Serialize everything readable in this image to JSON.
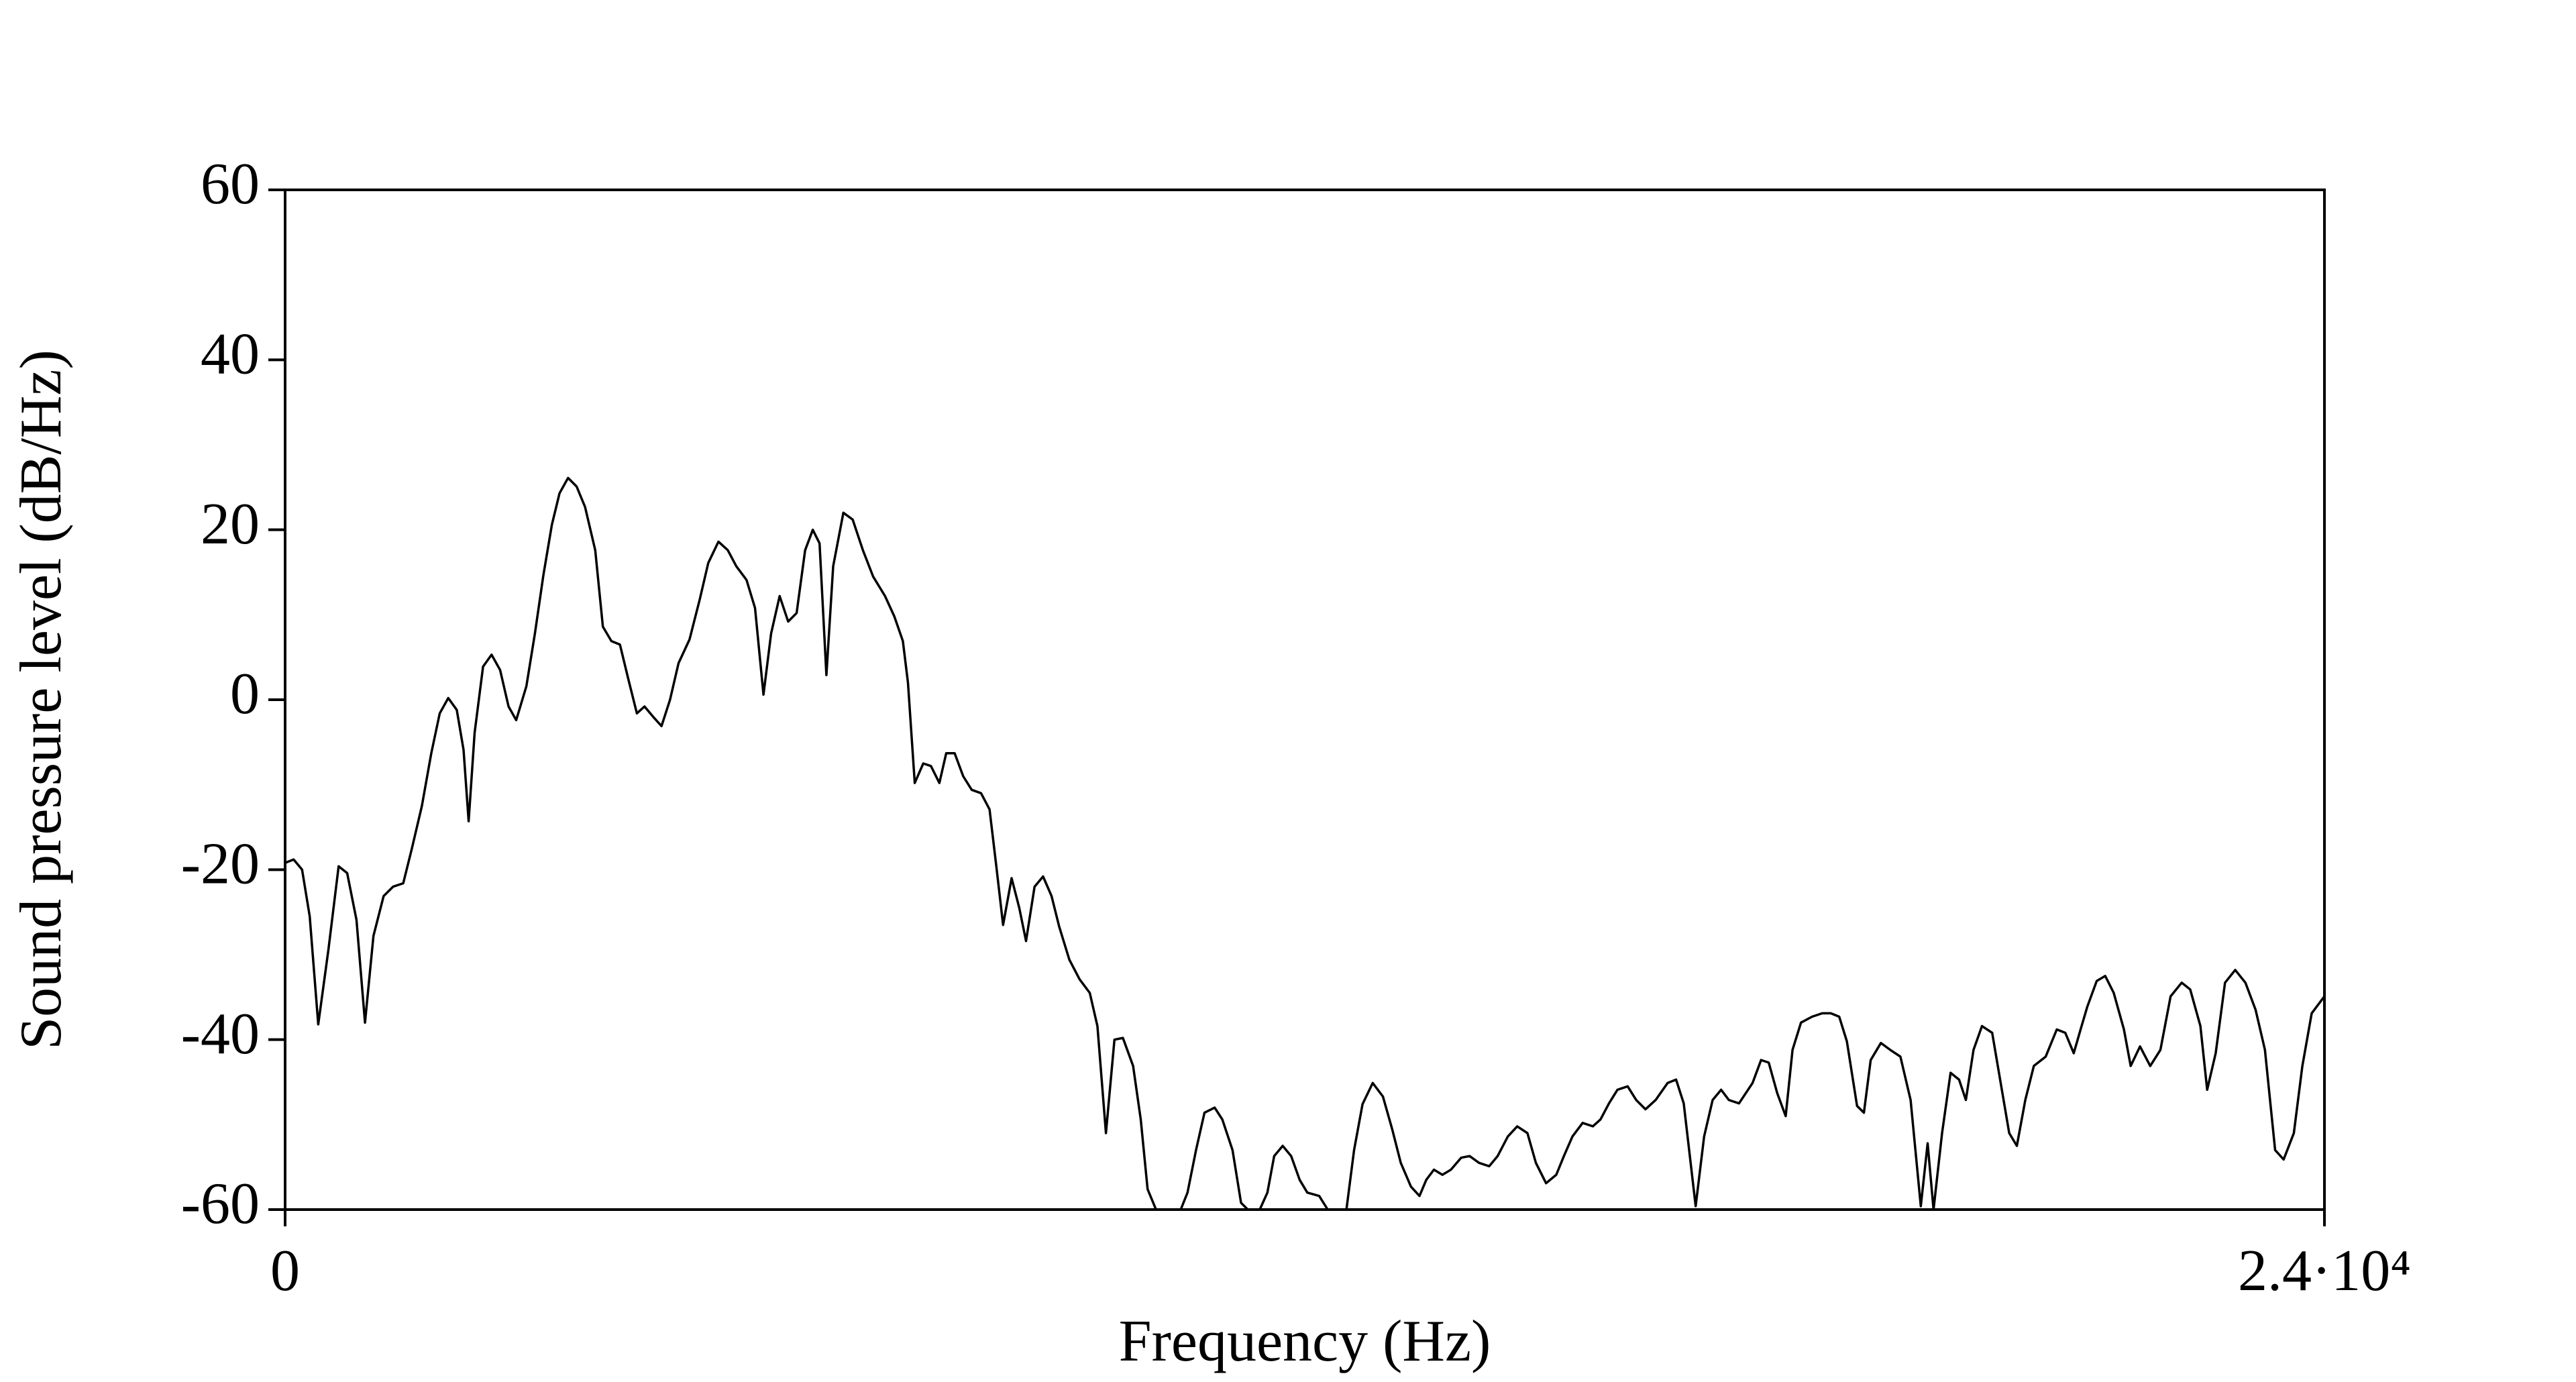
{
  "chart_data": {
    "type": "line",
    "x_label": "Frequency (Hz)",
    "y_label": "Sound pressure level (dB/Hz)",
    "xlim": [
      0,
      24000
    ],
    "ylim": [
      -60,
      60
    ],
    "xticks": [
      0,
      {
        "value": 24000,
        "label": "2.4·10⁴"
      }
    ],
    "yticks": [
      -60,
      -40,
      -20,
      0,
      20,
      40,
      60
    ],
    "color": "#000000",
    "x": [
      0,
      100,
      200,
      290,
      390,
      510,
      630,
      730,
      840,
      940,
      1040,
      1160,
      1270,
      1390,
      1490,
      1610,
      1720,
      1820,
      1920,
      2020,
      2100,
      2160,
      2230,
      2330,
      2430,
      2530,
      2630,
      2720,
      2840,
      2940,
      3040,
      3140,
      3230,
      3330,
      3430,
      3530,
      3650,
      3740,
      3840,
      3940,
      4040,
      4140,
      4230,
      4330,
      4430,
      4530,
      4630,
      4760,
      4880,
      4980,
      5100,
      5210,
      5310,
      5430,
      5530,
      5630,
      5720,
      5820,
      5920,
      6020,
      6120,
      6210,
      6290,
      6370,
      6450,
      6570,
      6680,
      6800,
      6920,
      7060,
      7170,
      7270,
      7330,
      7410,
      7510,
      7600,
      7700,
      7780,
      7880,
      7980,
      8080,
      8190,
      8290,
      8370,
      8450,
      8550,
      8640,
      8720,
      8820,
      8920,
      9020,
      9110,
      9230,
      9350,
      9470,
      9560,
      9660,
      9760,
      9860,
      9980,
      10070,
      10150,
      10250,
      10540,
      10620,
      10720,
      10820,
      10940,
      11030,
      11150,
      11250,
      11330,
      11470,
      11560,
      11640,
      11740,
      11840,
      11940,
      12030,
      12170,
      12270,
      12490,
      12580,
      12680,
      12800,
      12920,
      13030,
      13130,
      13250,
      13350,
      13430,
      13520,
      13620,
      13720,
      13840,
      13940,
      14050,
      14170,
      14270,
      14390,
      14500,
      14620,
      14720,
      14840,
      14960,
      15050,
      15150,
      15270,
      15390,
      15480,
      15580,
      15680,
      15800,
      15900,
      16010,
      16130,
      16270,
      16370,
      16460,
      16600,
      16700,
      16800,
      16900,
      16990,
      17110,
      17270,
      17370,
      17460,
      17560,
      17660,
      17740,
      17840,
      17970,
      18090,
      18190,
      18290,
      18380,
      18500,
      18580,
      18660,
      18780,
      18890,
      19010,
      19130,
      19250,
      19330,
      19400,
      19500,
      19600,
      19700,
      19780,
      19870,
      19970,
      20090,
      20190,
      20290,
      20380,
      20480,
      20580,
      20720,
      20850,
      20950,
      21050,
      21130,
      21210,
      21320,
      21420,
      21520,
      21640,
      21720,
      21830,
      21950,
      22070,
      22190,
      22320,
      22420,
      22540,
      22620,
      22720,
      22830,
      22950,
      23070,
      23190,
      23300,
      23420,
      23520,
      23640,
      23740,
      23850,
      24000
    ],
    "values": [
      -19.2,
      -18.8,
      -20,
      -25.5,
      -38.2,
      -29.4,
      -19.6,
      -20.4,
      -25.9,
      -38,
      -27.8,
      -23.1,
      -22,
      -21.6,
      -17.6,
      -12.5,
      -6.3,
      -1.6,
      0.2,
      -1.2,
      -5.9,
      -14.3,
      -3.9,
      3.9,
      5.3,
      3.5,
      -0.8,
      -2.4,
      1.6,
      7.8,
      14.7,
      20.6,
      24.3,
      26.1,
      25.1,
      22.7,
      17.6,
      8.6,
      6.9,
      6.5,
      2.4,
      -1.6,
      -0.8,
      -2,
      -3.1,
      0,
      4.3,
      7.1,
      11.8,
      16.1,
      18.6,
      17.6,
      15.7,
      14.1,
      10.8,
      0.6,
      7.8,
      12.2,
      9.2,
      10.2,
      17.6,
      20,
      18.4,
      2.9,
      15.7,
      22,
      21.2,
      17.6,
      14.5,
      12.2,
      9.8,
      6.9,
      2,
      -9.8,
      -7.5,
      -7.8,
      -9.8,
      -6.3,
      -6.3,
      -9,
      -10.6,
      -11,
      -12.9,
      -19.6,
      -26.5,
      -21,
      -24.5,
      -28.4,
      -22,
      -20.8,
      -23.1,
      -26.7,
      -30.6,
      -32.9,
      -34.5,
      -38.4,
      -51,
      -40,
      -39.8,
      -43.1,
      -49.4,
      -57.6,
      -60,
      -60,
      -58,
      -53,
      -48.6,
      -48,
      -49.4,
      -53,
      -59.2,
      -60,
      -60,
      -58,
      -53.7,
      -52.5,
      -53.7,
      -56.5,
      -58,
      -58.4,
      -60,
      -60,
      -53,
      -47.6,
      -45.1,
      -46.7,
      -50.6,
      -54.5,
      -57.3,
      -58.4,
      -56.5,
      -55.3,
      -55.9,
      -55.3,
      -53.9,
      -53.7,
      -54.5,
      -54.9,
      -53.7,
      -51.4,
      -50.2,
      -51,
      -54.5,
      -56.9,
      -55.9,
      -53.7,
      -51.4,
      -49.8,
      -50.2,
      -49.4,
      -47.5,
      -45.9,
      -45.5,
      -47.1,
      -48.2,
      -47.1,
      -45.1,
      -44.7,
      -47.5,
      -59.6,
      -51.4,
      -47.1,
      -45.9,
      -47.1,
      -47.5,
      -45.1,
      -42.4,
      -42.7,
      -46.3,
      -49,
      -41.2,
      -38,
      -37.3,
      -36.9,
      -36.9,
      -37.3,
      -40.2,
      -47.8,
      -48.6,
      -42.4,
      -40.4,
      -41.2,
      -42,
      -47.1,
      -59.6,
      -52.2,
      -60,
      -51,
      -43.9,
      -44.7,
      -47.1,
      -41.2,
      -38.4,
      -39.2,
      -45.1,
      -51,
      -52.5,
      -47.1,
      -43.1,
      -42,
      -38.8,
      -39.2,
      -41.6,
      -38.8,
      -36.1,
      -33.1,
      -32.5,
      -34.5,
      -38.8,
      -43.1,
      -40.8,
      -43.1,
      -41.2,
      -34.9,
      -33.3,
      -34.1,
      -38.4,
      -45.9,
      -41.6,
      -33.3,
      -31.8,
      -33.3,
      -36.5,
      -41.2,
      -53,
      -54.1,
      -51,
      -43.1,
      -36.9,
      -34.9
    ]
  }
}
